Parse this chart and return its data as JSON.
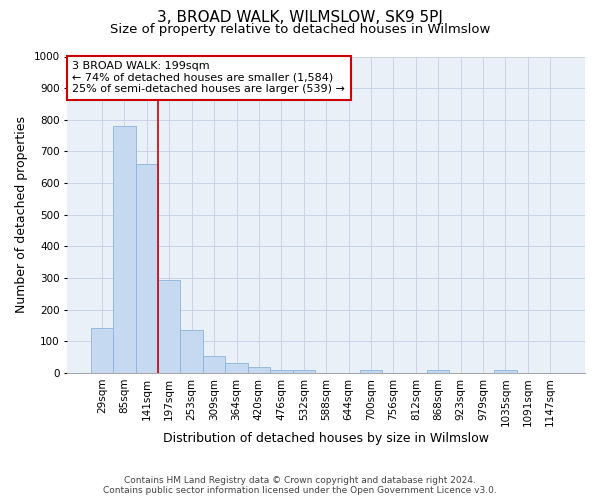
{
  "title": "3, BROAD WALK, WILMSLOW, SK9 5PJ",
  "subtitle": "Size of property relative to detached houses in Wilmslow",
  "xlabel": "Distribution of detached houses by size in Wilmslow",
  "ylabel": "Number of detached properties",
  "categories": [
    "29sqm",
    "85sqm",
    "141sqm",
    "197sqm",
    "253sqm",
    "309sqm",
    "364sqm",
    "420sqm",
    "476sqm",
    "532sqm",
    "588sqm",
    "644sqm",
    "700sqm",
    "756sqm",
    "812sqm",
    "868sqm",
    "923sqm",
    "979sqm",
    "1035sqm",
    "1091sqm",
    "1147sqm"
  ],
  "values": [
    143,
    780,
    660,
    293,
    135,
    53,
    30,
    18,
    10,
    8,
    0,
    0,
    8,
    0,
    0,
    8,
    0,
    0,
    10,
    0,
    0
  ],
  "bar_color": "#c5d9f0",
  "bar_edge_color": "#8ab4d9",
  "property_label": "3 BROAD WALK: 199sqm",
  "annotation_line1": "← 74% of detached houses are smaller (1,584)",
  "annotation_line2": "25% of semi-detached houses are larger (539) →",
  "annotation_box_color": "#ffffff",
  "annotation_box_edge": "#cc0000",
  "line_color": "#cc0000",
  "line_index": 3,
  "ylim": [
    0,
    1000
  ],
  "yticks": [
    0,
    100,
    200,
    300,
    400,
    500,
    600,
    700,
    800,
    900,
    1000
  ],
  "grid_color": "#c8d4e8",
  "bg_color": "#eaf0f8",
  "footnote1": "Contains HM Land Registry data © Crown copyright and database right 2024.",
  "footnote2": "Contains public sector information licensed under the Open Government Licence v3.0.",
  "title_fontsize": 11,
  "subtitle_fontsize": 9.5,
  "xlabel_fontsize": 9,
  "ylabel_fontsize": 9,
  "tick_fontsize": 7.5,
  "footnote_fontsize": 6.5,
  "annot_fontsize": 8
}
